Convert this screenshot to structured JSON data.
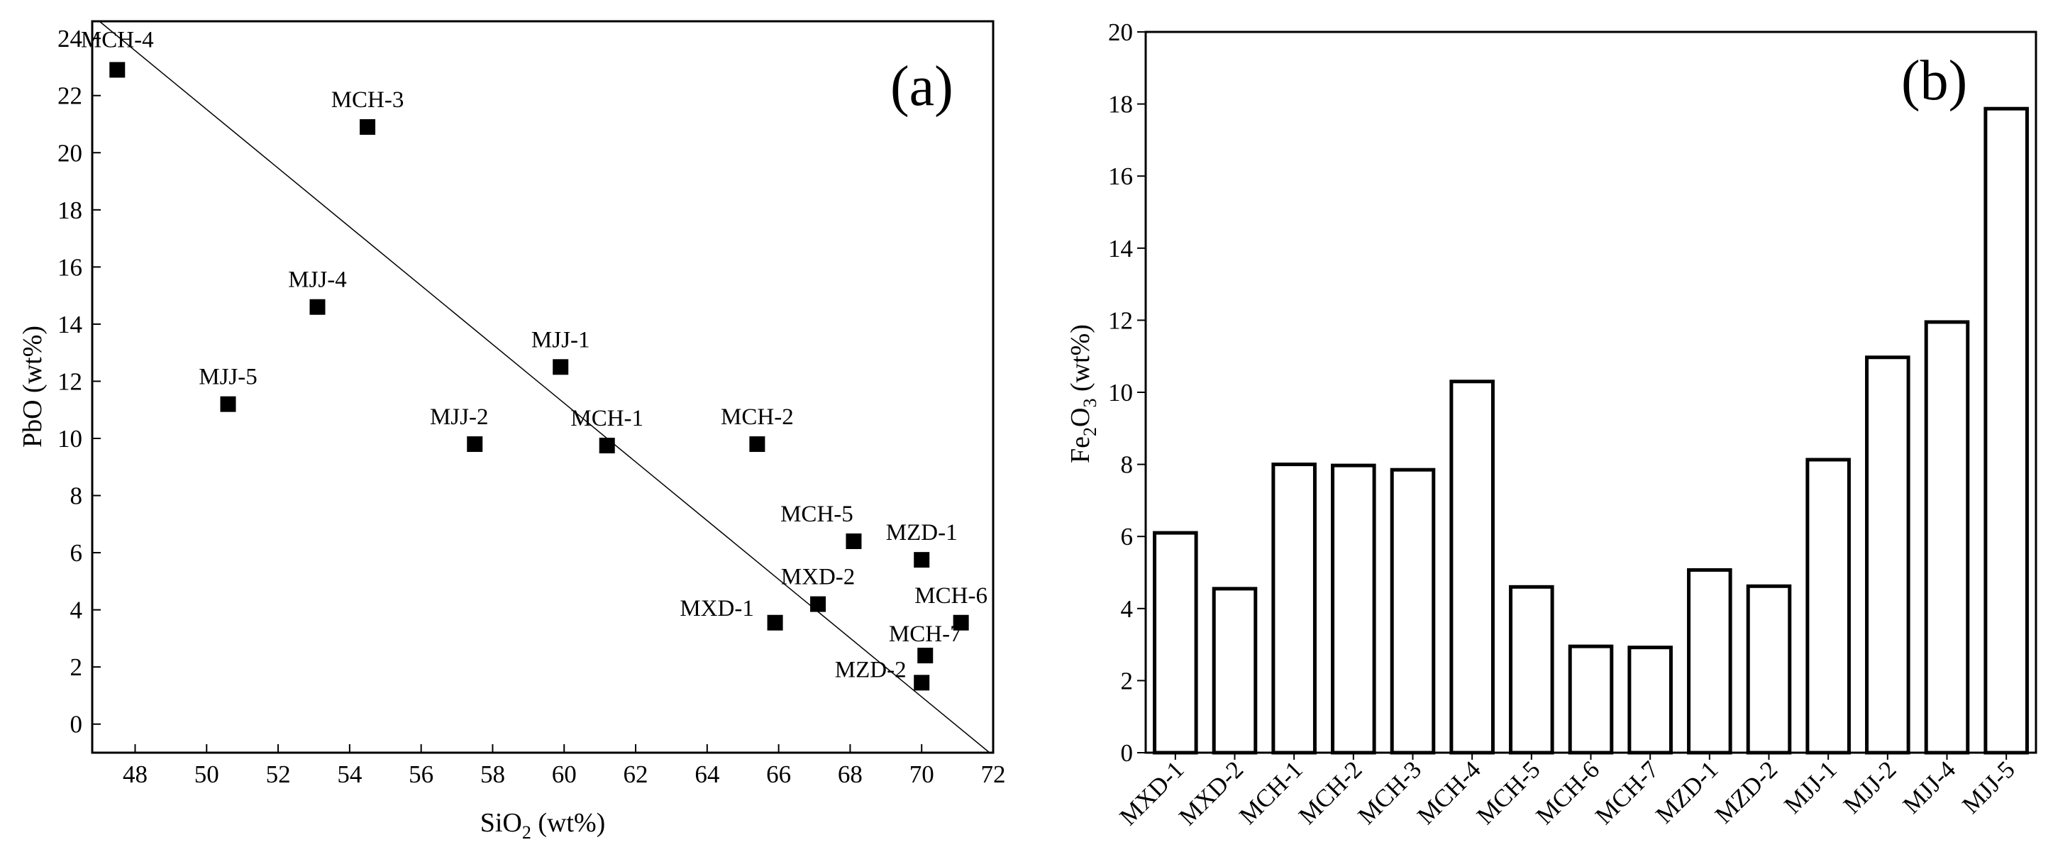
{
  "chart_data": [
    {
      "type": "scatter",
      "panel_label": "(a)",
      "xlabel": {
        "main": "SiO",
        "sub": "2",
        "suffix": " (wt%)"
      },
      "ylabel": "PbO (wt%)",
      "xlim": [
        46.8,
        72
      ],
      "ylim": [
        -1,
        24.6
      ],
      "xticks": [
        48,
        50,
        52,
        54,
        56,
        58,
        60,
        62,
        64,
        66,
        68,
        70,
        72
      ],
      "yticks": [
        0,
        2,
        4,
        6,
        8,
        10,
        12,
        14,
        16,
        18,
        20,
        22,
        24
      ],
      "trendline": {
        "x": [
          47.0,
          71.9
        ],
        "y": [
          24.6,
          -1.0
        ]
      },
      "points": [
        {
          "label": "MCH-4",
          "x": 47.5,
          "y": 22.9
        },
        {
          "label": "MCH-3",
          "x": 54.5,
          "y": 20.9
        },
        {
          "label": "MJJ-4",
          "x": 53.1,
          "y": 14.6
        },
        {
          "label": "MJJ-5",
          "x": 50.6,
          "y": 11.2
        },
        {
          "label": "MJJ-1",
          "x": 59.9,
          "y": 12.5
        },
        {
          "label": "MJJ-2",
          "x": 57.5,
          "y": 9.8
        },
        {
          "label": "MCH-1",
          "x": 61.2,
          "y": 9.75
        },
        {
          "label": "MCH-2",
          "x": 65.4,
          "y": 9.8
        },
        {
          "label": "MCH-5",
          "x": 68.1,
          "y": 6.4
        },
        {
          "label": "MZD-1",
          "x": 70.0,
          "y": 5.75
        },
        {
          "label": "MXD-2",
          "x": 67.1,
          "y": 4.2
        },
        {
          "label": "MXD-1",
          "x": 65.9,
          "y": 3.55
        },
        {
          "label": "MCH-6",
          "x": 71.1,
          "y": 3.55
        },
        {
          "label": "MCH-7",
          "x": 70.1,
          "y": 2.4
        },
        {
          "label": "MZD-2",
          "x": 70.0,
          "y": 1.45
        }
      ],
      "grid": false,
      "legend": "none"
    },
    {
      "type": "bar",
      "panel_label": "(b)",
      "ylabel": {
        "main": "Fe",
        "sub1": "2",
        "mid": "O",
        "sub2": "3",
        "suffix": " (wt%)"
      },
      "categories": [
        "MXD-1",
        "MXD-2",
        "MCH-1",
        "MCH-2",
        "MCH-3",
        "MCH-4",
        "MCH-5",
        "MCH-6",
        "MCH-7",
        "MZD-1",
        "MZD-2",
        "MJJ-1",
        "MJJ-2",
        "MJJ-4",
        "MJJ-5"
      ],
      "values": [
        6.1,
        4.55,
        8.0,
        7.97,
        7.85,
        10.3,
        4.6,
        2.95,
        2.92,
        5.07,
        4.62,
        8.13,
        10.97,
        11.95,
        17.87
      ],
      "ylim": [
        0,
        20
      ],
      "yticks": [
        0,
        2,
        4,
        6,
        8,
        10,
        12,
        14,
        16,
        18,
        20
      ],
      "grid": false,
      "legend": "none"
    }
  ]
}
